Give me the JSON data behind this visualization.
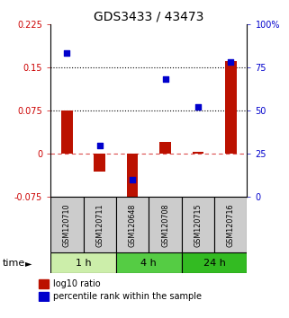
{
  "title": "GDS3433 / 43473",
  "samples": [
    "GSM120710",
    "GSM120711",
    "GSM120648",
    "GSM120708",
    "GSM120715",
    "GSM120716"
  ],
  "log10_ratio": [
    0.075,
    -0.03,
    -0.095,
    0.02,
    0.003,
    0.16
  ],
  "percentile_rank": [
    83,
    30,
    10,
    68,
    52,
    78
  ],
  "ylim_left": [
    -0.075,
    0.225
  ],
  "ylim_right": [
    0,
    100
  ],
  "yticks_left": [
    -0.075,
    0,
    0.075,
    0.15,
    0.225
  ],
  "ytick_labels_left": [
    "-0.075",
    "0",
    "0.075",
    "0.15",
    "0.225"
  ],
  "yticks_right": [
    0,
    25,
    50,
    75,
    100
  ],
  "ytick_labels_right": [
    "0",
    "25",
    "50",
    "75",
    "100%"
  ],
  "hlines": [
    0.075,
    0.15
  ],
  "hline_zero_color": "#cc0000",
  "hline_color": "black",
  "bar_color": "#bb1100",
  "dot_color": "#0000cc",
  "time_groups": [
    {
      "label": "1 h",
      "color": "#cceeaa",
      "start": 0,
      "end": 2
    },
    {
      "label": "4 h",
      "color": "#55cc44",
      "start": 2,
      "end": 4
    },
    {
      "label": "24 h",
      "color": "#33bb22",
      "start": 4,
      "end": 6
    }
  ],
  "time_label": "time",
  "legend_bar_label": "log10 ratio",
  "legend_dot_label": "percentile rank within the sample",
  "bar_width": 0.35,
  "dot_size": 22,
  "sample_box_color": "#cccccc",
  "title_fontsize": 10,
  "tick_fontsize": 7,
  "time_fontsize": 8,
  "legend_fontsize": 7
}
